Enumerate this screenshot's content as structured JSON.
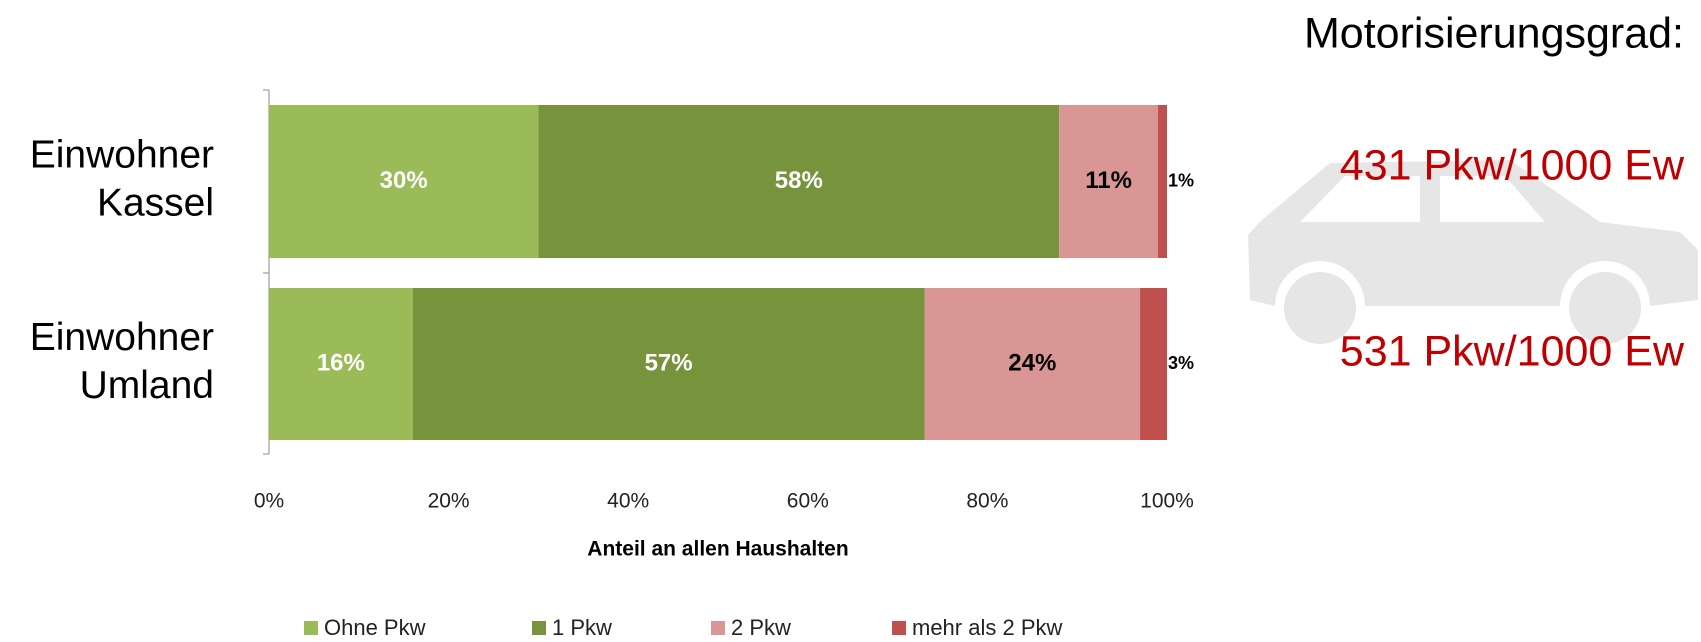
{
  "chart_data": {
    "type": "stacked-bar-horizontal",
    "categories": [
      "Einwohner Kassel",
      "Einwohner Umland"
    ],
    "series": [
      {
        "name": "Ohne Pkw",
        "color": "#9bbb59",
        "values": [
          30,
          16
        ],
        "value_labels": [
          "30%",
          "16%"
        ]
      },
      {
        "name": "1 Pkw",
        "color": "#77933c",
        "values": [
          58,
          57
        ],
        "value_labels": [
          "58%",
          "57%"
        ]
      },
      {
        "name": "2 Pkw",
        "color": "#d99694",
        "values": [
          11,
          24
        ],
        "value_labels": [
          "11%",
          "24%"
        ]
      },
      {
        "name": "mehr als 2 Pkw",
        "color": "#c0504d",
        "values": [
          1,
          3
        ],
        "value_labels": [
          "1%",
          "3%"
        ]
      }
    ],
    "xlim": [
      0,
      100
    ],
    "xticks": [
      {
        "value": 0,
        "label": "0%"
      },
      {
        "value": 20,
        "label": "20%"
      },
      {
        "value": 40,
        "label": "40%"
      },
      {
        "value": 60,
        "label": "60%"
      },
      {
        "value": 80,
        "label": "80%"
      },
      {
        "value": 100,
        "label": "100%"
      }
    ],
    "xlabel": "Anteil an allen Haushalten",
    "legend": "bottom",
    "annotations": [
      "Motorisierungsgrad:",
      "431 Pkw/1000 Ew",
      "531 Pkw/1000 Ew"
    ]
  }
}
